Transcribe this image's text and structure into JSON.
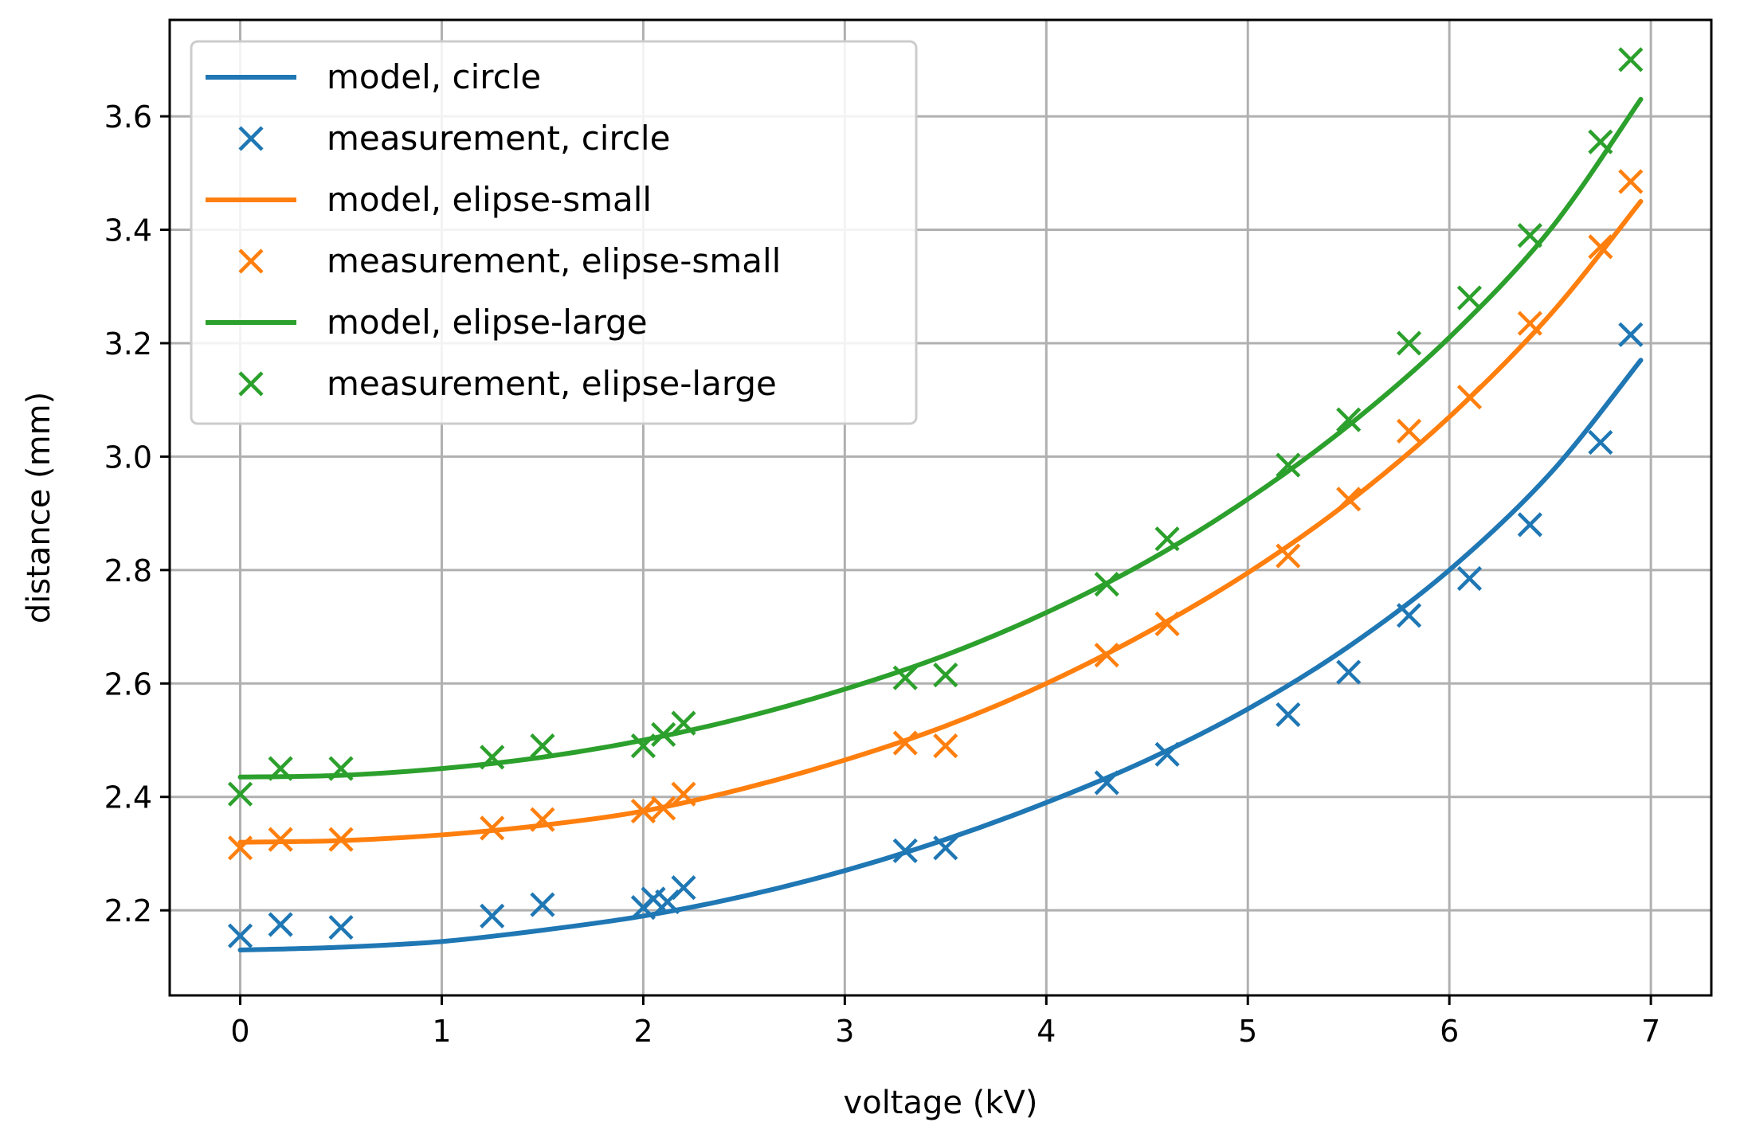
{
  "colors": {
    "circle": "#1f77b4",
    "elipse_small": "#ff7f0e",
    "elipse_large": "#2ca02c",
    "grid": "#b0b0b0",
    "axes": "#000000"
  },
  "chart_data": {
    "type": "line",
    "title": "",
    "xlabel": "voltage (kV)",
    "ylabel": "distance (mm)",
    "xlim": [
      -0.35,
      7.3
    ],
    "ylim": [
      2.05,
      3.77
    ],
    "xticks": [
      0,
      1,
      2,
      3,
      4,
      5,
      6,
      7
    ],
    "xtick_labels": [
      "0",
      "1",
      "2",
      "3",
      "4",
      "5",
      "6",
      "7"
    ],
    "yticks": [
      2.2,
      2.4,
      2.6,
      2.8,
      3.0,
      3.2,
      3.4,
      3.6
    ],
    "ytick_labels": [
      "2.2",
      "2.4",
      "2.6",
      "2.8",
      "3.0",
      "3.2",
      "3.4",
      "3.6"
    ],
    "grid": true,
    "legend_position": "top-left",
    "legend": [
      {
        "label": "model, circle",
        "kind": "line",
        "color": "#1f77b4"
      },
      {
        "label": "measurement, circle",
        "kind": "marker",
        "color": "#1f77b4"
      },
      {
        "label": "model, elipse-small",
        "kind": "line",
        "color": "#ff7f0e"
      },
      {
        "label": "measurement, elipse-small",
        "kind": "marker",
        "color": "#ff7f0e"
      },
      {
        "label": "model, elipse-large",
        "kind": "line",
        "color": "#2ca02c"
      },
      {
        "label": "measurement, elipse-large",
        "kind": "marker",
        "color": "#2ca02c"
      }
    ],
    "series": [
      {
        "name": "model, circle",
        "kind": "line",
        "color": "#1f77b4",
        "x": [
          0,
          0.5,
          1.0,
          1.5,
          2.0,
          2.5,
          3.0,
          3.5,
          4.0,
          4.5,
          5.0,
          5.5,
          6.0,
          6.5,
          6.95
        ],
        "y": [
          2.13,
          2.135,
          2.145,
          2.165,
          2.19,
          2.225,
          2.27,
          2.325,
          2.39,
          2.465,
          2.555,
          2.665,
          2.8,
          2.97,
          3.17
        ]
      },
      {
        "name": "measurement, circle",
        "kind": "marker",
        "color": "#1f77b4",
        "x": [
          0,
          0.2,
          0.5,
          1.25,
          1.5,
          2.0,
          2.05,
          2.12,
          2.2,
          3.3,
          3.5,
          4.3,
          4.6,
          5.2,
          5.5,
          5.8,
          6.1,
          6.4,
          6.75,
          6.9
        ],
        "y": [
          2.155,
          2.175,
          2.17,
          2.19,
          2.21,
          2.205,
          2.22,
          2.215,
          2.24,
          2.305,
          2.31,
          2.425,
          2.475,
          2.545,
          2.62,
          2.72,
          2.785,
          2.88,
          3.025,
          3.215
        ]
      },
      {
        "name": "model, elipse-small",
        "kind": "line",
        "color": "#ff7f0e",
        "x": [
          0,
          0.5,
          1.0,
          1.5,
          2.0,
          2.5,
          3.0,
          3.5,
          4.0,
          4.5,
          5.0,
          5.5,
          6.0,
          6.5,
          6.95
        ],
        "y": [
          2.32,
          2.323,
          2.333,
          2.35,
          2.375,
          2.415,
          2.465,
          2.525,
          2.6,
          2.69,
          2.795,
          2.92,
          3.07,
          3.25,
          3.45
        ]
      },
      {
        "name": "measurement, elipse-small",
        "kind": "marker",
        "color": "#ff7f0e",
        "x": [
          0,
          0.2,
          0.5,
          1.25,
          1.5,
          2.0,
          2.1,
          2.2,
          3.3,
          3.5,
          4.3,
          4.6,
          5.2,
          5.5,
          5.8,
          6.1,
          6.4,
          6.75,
          6.9
        ],
        "y": [
          2.31,
          2.325,
          2.325,
          2.345,
          2.36,
          2.375,
          2.38,
          2.405,
          2.495,
          2.49,
          2.65,
          2.705,
          2.825,
          2.925,
          3.045,
          3.105,
          3.235,
          3.37,
          3.485
        ]
      },
      {
        "name": "model, elipse-large",
        "kind": "line",
        "color": "#2ca02c",
        "x": [
          0,
          0.5,
          1.0,
          1.5,
          2.0,
          2.5,
          3.0,
          3.5,
          4.0,
          4.5,
          5.0,
          5.5,
          6.0,
          6.5,
          6.95
        ],
        "y": [
          2.435,
          2.438,
          2.45,
          2.47,
          2.5,
          2.54,
          2.59,
          2.65,
          2.725,
          2.815,
          2.925,
          3.055,
          3.21,
          3.4,
          3.63
        ]
      },
      {
        "name": "measurement, elipse-large",
        "kind": "marker",
        "color": "#2ca02c",
        "x": [
          0,
          0.2,
          0.5,
          1.25,
          1.5,
          2.0,
          2.1,
          2.2,
          3.3,
          3.5,
          4.3,
          4.6,
          5.2,
          5.5,
          5.8,
          6.1,
          6.4,
          6.75,
          6.9
        ],
        "y": [
          2.405,
          2.45,
          2.45,
          2.47,
          2.49,
          2.49,
          2.51,
          2.53,
          2.61,
          2.615,
          2.775,
          2.855,
          2.985,
          3.065,
          3.2,
          3.28,
          3.39,
          3.555,
          3.7
        ]
      }
    ]
  }
}
